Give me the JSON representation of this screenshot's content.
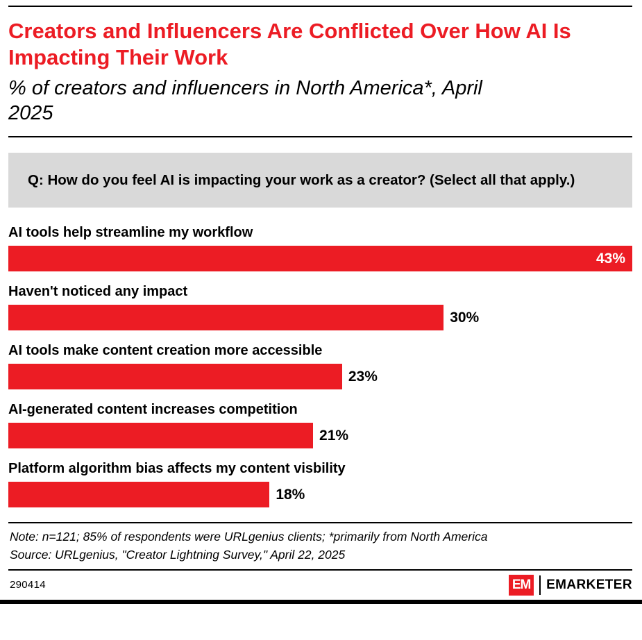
{
  "accent_color": "#ec1c24",
  "header": {
    "title": "Creators and Influencers Are Conflicted Over How AI Is Impacting Their Work",
    "subtitle": "% of creators and influencers in North America*, April 2025"
  },
  "question": "Q: How do you feel AI is impacting your work as a creator? (Select all that apply.)",
  "chart_data": {
    "type": "bar",
    "orientation": "horizontal",
    "title": "Creators and Influencers Are Conflicted Over How AI Is Impacting Their Work",
    "subtitle": "% of creators and influencers in North America*, April 2025",
    "categories": [
      "AI tools help streamline my workflow",
      "Haven't noticed any impact",
      "AI tools make content creation more accessible",
      "AI-generated content increases competition",
      "Platform algorithm bias affects my content visbility"
    ],
    "values": [
      43,
      30,
      23,
      21,
      18
    ],
    "value_labels": [
      "43%",
      "30%",
      "23%",
      "21%",
      "18%"
    ],
    "inside_flags": [
      true,
      false,
      false,
      false,
      false
    ],
    "xlim": [
      0,
      43
    ],
    "bar_color": "#ec1c24",
    "grid": false,
    "legend": false
  },
  "notes": {
    "note": "Note: n=121; 85% of respondents were URLgenius clients; *primarily from North America",
    "source": "Source: URLgenius, \"Creator Lightning Survey,\" April 22, 2025"
  },
  "footer": {
    "chart_id": "290414",
    "logo_em": "EM",
    "logo_text": "EMARKETER"
  }
}
